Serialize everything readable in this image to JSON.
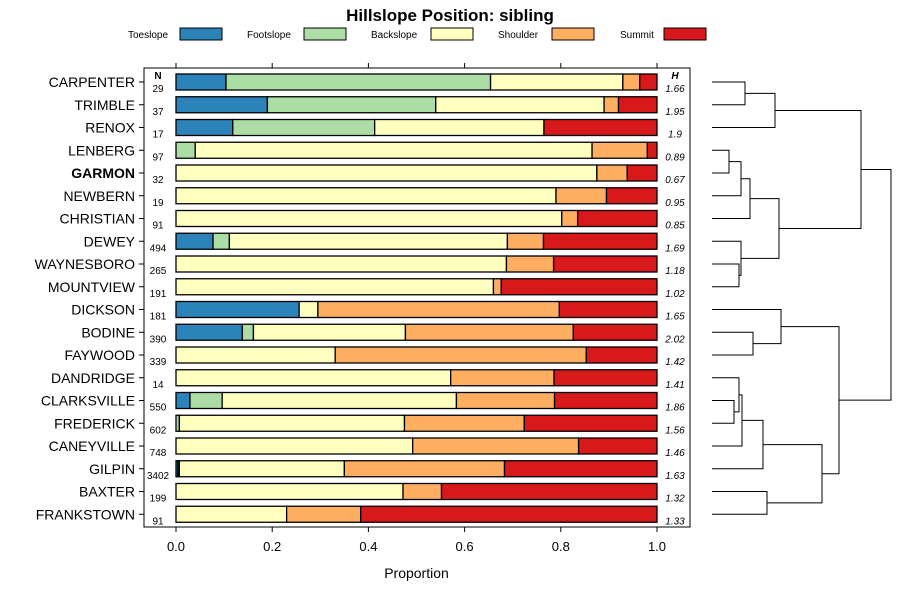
{
  "chart_data": {
    "type": "bar",
    "title": "Hillslope Position: sibling",
    "xlabel": "Proportion",
    "ylabel": "",
    "xlim": [
      0,
      1
    ],
    "x_ticks": [
      "0.0",
      "0.2",
      "0.4",
      "0.6",
      "0.8",
      "1.0"
    ],
    "n_header": "N",
    "h_header": "H",
    "highlight": "GARMON",
    "legend": [
      {
        "label": "Toeslope",
        "color": "#2b83ba"
      },
      {
        "label": "Footslope",
        "color": "#abdda4"
      },
      {
        "label": "Backslope",
        "color": "#ffffbf"
      },
      {
        "label": "Shoulder",
        "color": "#fdae61"
      },
      {
        "label": "Summit",
        "color": "#d7191c"
      }
    ],
    "rows": [
      {
        "name": "CARPENTER",
        "n": "29",
        "h": "1.66",
        "values": [
          0.104,
          0.55,
          0.275,
          0.035,
          0.036
        ]
      },
      {
        "name": "TRIMBLE",
        "n": "37",
        "h": "1.95",
        "values": [
          0.19,
          0.35,
          0.35,
          0.03,
          0.08
        ]
      },
      {
        "name": "RENOX",
        "n": "17",
        "h": "1.9",
        "values": [
          0.118,
          0.295,
          0.352,
          0.0,
          0.235
        ]
      },
      {
        "name": "LENBERG",
        "n": "97",
        "h": "0.89",
        "values": [
          0.0,
          0.04,
          0.825,
          0.115,
          0.02
        ]
      },
      {
        "name": "GARMON",
        "n": "32",
        "h": "0.67",
        "values": [
          0.0,
          0.0,
          0.875,
          0.063,
          0.062
        ]
      },
      {
        "name": "NEWBERN",
        "n": "19",
        "h": "0.95",
        "values": [
          0.0,
          0.0,
          0.79,
          0.105,
          0.105
        ]
      },
      {
        "name": "CHRISTIAN",
        "n": "91",
        "h": "0.85",
        "values": [
          0.0,
          0.0,
          0.802,
          0.033,
          0.165
        ]
      },
      {
        "name": "DEWEY",
        "n": "494",
        "h": "1.69",
        "values": [
          0.077,
          0.034,
          0.578,
          0.075,
          0.236
        ]
      },
      {
        "name": "WAYNESBORO",
        "n": "265",
        "h": "1.18",
        "values": [
          0.0,
          0.0,
          0.687,
          0.098,
          0.215
        ]
      },
      {
        "name": "MOUNTVIEW",
        "n": "191",
        "h": "1.02",
        "values": [
          0.0,
          0.0,
          0.66,
          0.016,
          0.324
        ]
      },
      {
        "name": "DICKSON",
        "n": "181",
        "h": "1.65",
        "values": [
          0.256,
          0.0,
          0.039,
          0.502,
          0.203
        ]
      },
      {
        "name": "BODINE",
        "n": "390",
        "h": "2.02",
        "values": [
          0.138,
          0.023,
          0.316,
          0.349,
          0.174
        ]
      },
      {
        "name": "FAYWOOD",
        "n": "339",
        "h": "1.42",
        "values": [
          0.0,
          0.0,
          0.331,
          0.522,
          0.147
        ]
      },
      {
        "name": "DANDRIDGE",
        "n": "14",
        "h": "1.41",
        "values": [
          0.0,
          0.0,
          0.571,
          0.215,
          0.214
        ]
      },
      {
        "name": "CLARKSVILLE",
        "n": "550",
        "h": "1.86",
        "values": [
          0.029,
          0.067,
          0.487,
          0.204,
          0.213
        ]
      },
      {
        "name": "FREDERICK",
        "n": "602",
        "h": "1.56",
        "values": [
          0.0,
          0.007,
          0.468,
          0.249,
          0.276
        ]
      },
      {
        "name": "CANEYVILLE",
        "n": "748",
        "h": "1.46",
        "values": [
          0.0,
          0.0,
          0.492,
          0.345,
          0.163
        ]
      },
      {
        "name": "GILPIN",
        "n": "3402",
        "h": "1.63",
        "values": [
          0.004,
          0.003,
          0.343,
          0.333,
          0.317
        ]
      },
      {
        "name": "BAXTER",
        "n": "199",
        "h": "1.32",
        "values": [
          0.0,
          0.0,
          0.472,
          0.08,
          0.448
        ]
      },
      {
        "name": "FRANKSTOWN",
        "n": "91",
        "h": "1.33",
        "values": [
          0.0,
          0.0,
          0.23,
          0.154,
          0.616
        ]
      }
    ]
  }
}
